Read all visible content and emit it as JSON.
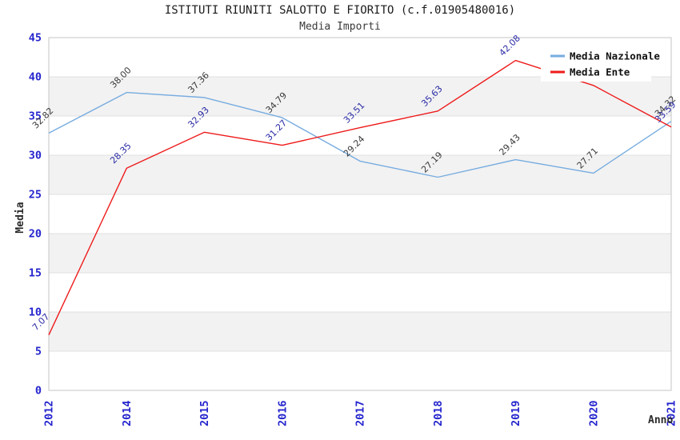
{
  "chart_data": {
    "type": "line",
    "title": "ISTITUTI RIUNITI SALOTTO E FIORITO (c.f.01905480016)",
    "subtitle": "Media Importi",
    "xlabel": "Anno",
    "ylabel": "Media",
    "categories": [
      "2012",
      "2014",
      "2015",
      "2016",
      "2017",
      "2018",
      "2019",
      "2020",
      "2021"
    ],
    "ylim": [
      0,
      45
    ],
    "yticks": [
      0,
      5,
      10,
      15,
      20,
      25,
      30,
      35,
      40,
      45
    ],
    "grid": "horizontal gridlines with alternating shaded bands",
    "legend_position": "top-right-inside",
    "series": [
      {
        "name": "Media Nazionale",
        "color": "#77ace0",
        "label_color": "#3a3a3a",
        "values": [
          32.82,
          38.0,
          37.36,
          34.79,
          29.24,
          27.19,
          29.43,
          27.71,
          34.32
        ],
        "point_labels": [
          "32.82",
          "38.00",
          "37.36",
          "34.79",
          "29.24",
          "27.19",
          "29.43",
          "27.71",
          "34.32"
        ]
      },
      {
        "name": "Media Ente",
        "color": "#ee1b1b",
        "label_color": "#2b2ba6",
        "values": [
          7.07,
          28.35,
          32.93,
          31.27,
          33.51,
          35.63,
          42.08,
          38.9,
          33.59
        ],
        "point_labels": [
          "7.07",
          "28.35",
          "32.93",
          "31.27",
          "33.51",
          "35.63",
          "42.08",
          "",
          "33.59"
        ],
        "occluded_label_index": 7
      }
    ],
    "colors": {
      "tick_label": "#2525ce",
      "band": "#f2f2f2",
      "grid_line": "#e0e0e0",
      "plot_border": "#c6c6c6",
      "title": "#1a1a1a",
      "axis_title": "#2a2a2a",
      "legend_text": "#111111",
      "legend_bg": "#ffffff"
    }
  }
}
